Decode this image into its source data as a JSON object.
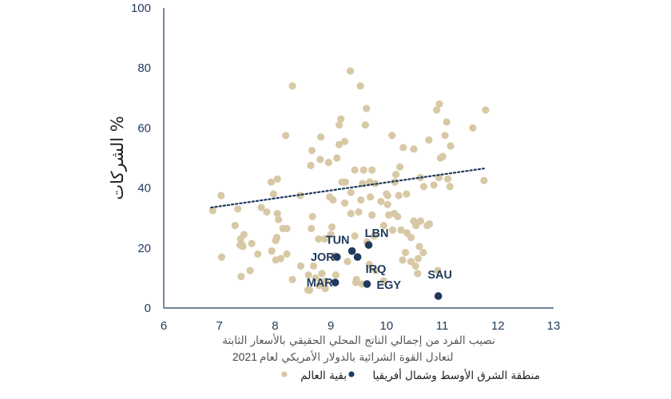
{
  "chart_data": {
    "type": "scatter",
    "xlabel_line1": "نصيب الفرد من إجمالي الناتج المحلي الحقيقي بالأسعار الثابتة",
    "xlabel_line2": "لتعادل القوة الشرائية بالدولار الأمريكي لعام",
    "xlabel_year": "2021",
    "ylabel": "% الشركات",
    "xlim": [
      6,
      13
    ],
    "ylim": [
      0,
      100
    ],
    "x_ticks": [
      "6",
      "7",
      "8",
      "9",
      "10",
      "11",
      "12",
      "13"
    ],
    "y_ticks": [
      "0",
      "20",
      "40",
      "60",
      "80",
      "100"
    ],
    "grid": false,
    "legend_position": "bottom",
    "colors": {
      "mena": "#1f3a5c",
      "rest": "#d8c9a6",
      "axis": "#1f3a5c",
      "trend": "#1f3a5c"
    },
    "series": [
      {
        "name": "بقية العالم",
        "points": [
          [
            6.88,
            32.5
          ],
          [
            7.03,
            37.5
          ],
          [
            7.04,
            17
          ],
          [
            7.28,
            27.5
          ],
          [
            7.33,
            33
          ],
          [
            7.37,
            21
          ],
          [
            7.38,
            23
          ],
          [
            7.39,
            10.5
          ],
          [
            7.41,
            21
          ],
          [
            7.42,
            20.5
          ],
          [
            7.44,
            24.5
          ],
          [
            7.55,
            12.5
          ],
          [
            7.58,
            21.5
          ],
          [
            7.69,
            18
          ],
          [
            7.75,
            33.5
          ],
          [
            7.85,
            32
          ],
          [
            7.93,
            42
          ],
          [
            7.94,
            19
          ],
          [
            7.97,
            38
          ],
          [
            8.01,
            22.5
          ],
          [
            8.01,
            16
          ],
          [
            8.03,
            23.5
          ],
          [
            8.04,
            31.5
          ],
          [
            8.04,
            43
          ],
          [
            8.06,
            29.5
          ],
          [
            8.1,
            16.5
          ],
          [
            8.14,
            26.5
          ],
          [
            8.19,
            57.5
          ],
          [
            8.21,
            26.5
          ],
          [
            8.21,
            18
          ],
          [
            8.31,
            74
          ],
          [
            8.31,
            9.5
          ],
          [
            8.45,
            37.5
          ],
          [
            8.46,
            14
          ],
          [
            8.59,
            6
          ],
          [
            8.6,
            11
          ],
          [
            8.62,
            6
          ],
          [
            8.64,
            47.5
          ],
          [
            8.65,
            26.5
          ],
          [
            8.66,
            52.5
          ],
          [
            8.67,
            30.5
          ],
          [
            8.69,
            14
          ],
          [
            8.73,
            10
          ],
          [
            8.78,
            23
          ],
          [
            8.79,
            7.5
          ],
          [
            8.81,
            49.5
          ],
          [
            8.82,
            57
          ],
          [
            8.84,
            11.5
          ],
          [
            8.89,
            23
          ],
          [
            8.9,
            9
          ],
          [
            8.9,
            6.5
          ],
          [
            8.96,
            48.5
          ],
          [
            8.98,
            37
          ],
          [
            9,
            24.5
          ],
          [
            9.02,
            27
          ],
          [
            9.04,
            36
          ],
          [
            9.05,
            17
          ],
          [
            9.07,
            17.5
          ],
          [
            9.09,
            11
          ],
          [
            9.11,
            50
          ],
          [
            9.15,
            54.5
          ],
          [
            9.15,
            61
          ],
          [
            9.18,
            63
          ],
          [
            9.2,
            42
          ],
          [
            9.25,
            55.5
          ],
          [
            9.25,
            35
          ],
          [
            9.26,
            42
          ],
          [
            9.3,
            15.5
          ],
          [
            9.35,
            79
          ],
          [
            9.36,
            31.5
          ],
          [
            9.36,
            38.5
          ],
          [
            9.43,
            46
          ],
          [
            9.43,
            24
          ],
          [
            9.45,
            8.5
          ],
          [
            9.46,
            9.5
          ],
          [
            9.5,
            32
          ],
          [
            9.53,
            74
          ],
          [
            9.54,
            36
          ],
          [
            9.56,
            8
          ],
          [
            9.57,
            41.5
          ],
          [
            9.59,
            46
          ],
          [
            9.62,
            61
          ],
          [
            9.64,
            66.5
          ],
          [
            9.65,
            22
          ],
          [
            9.69,
            14.5
          ],
          [
            9.7,
            42
          ],
          [
            9.71,
            37
          ],
          [
            9.74,
            46
          ],
          [
            9.74,
            31
          ],
          [
            9.78,
            24
          ],
          [
            9.8,
            12.5
          ],
          [
            9.8,
            41.5
          ],
          [
            9.9,
            35.5
          ],
          [
            9.95,
            27.5
          ],
          [
            9.95,
            9
          ],
          [
            10.0,
            38
          ],
          [
            10.02,
            37.5
          ],
          [
            10.02,
            34.5
          ],
          [
            10.04,
            31
          ],
          [
            10.1,
            57.5
          ],
          [
            10.11,
            26
          ],
          [
            10.14,
            31.5
          ],
          [
            10.15,
            42
          ],
          [
            10.17,
            44.5
          ],
          [
            10.2,
            30.5
          ],
          [
            10.22,
            37.5
          ],
          [
            10.24,
            47
          ],
          [
            10.26,
            26
          ],
          [
            10.29,
            16
          ],
          [
            10.3,
            53.5
          ],
          [
            10.34,
            18.5
          ],
          [
            10.36,
            38
          ],
          [
            10.37,
            25
          ],
          [
            10.44,
            23.5
          ],
          [
            10.44,
            15.5
          ],
          [
            10.49,
            29
          ],
          [
            10.49,
            53
          ],
          [
            10.52,
            14
          ],
          [
            10.53,
            27.5
          ],
          [
            10.56,
            11.5
          ],
          [
            10.57,
            16.5
          ],
          [
            10.59,
            20.5
          ],
          [
            10.61,
            43.5
          ],
          [
            10.61,
            29
          ],
          [
            10.66,
            18.5
          ],
          [
            10.67,
            40.5
          ],
          [
            10.73,
            27.5
          ],
          [
            10.76,
            56
          ],
          [
            10.77,
            28
          ],
          [
            10.85,
            41
          ],
          [
            10.9,
            66
          ],
          [
            10.92,
            12.5
          ],
          [
            10.94,
            43.5
          ],
          [
            10.95,
            68
          ],
          [
            10.97,
            50
          ],
          [
            11.01,
            50.5
          ],
          [
            11.05,
            57.5
          ],
          [
            11.08,
            62
          ],
          [
            11.1,
            43
          ],
          [
            11.14,
            40.5
          ],
          [
            11.15,
            54
          ],
          [
            11.55,
            60
          ],
          [
            11.75,
            42.5
          ],
          [
            11.78,
            66
          ]
        ]
      },
      {
        "name": "منطقة الشرق الأوسط وشمال أفريقيا",
        "points": [
          {
            "code": "TUN",
            "x": 9.38,
            "y": 19
          },
          {
            "code": "LBN",
            "x": 9.68,
            "y": 21
          },
          {
            "code": "JOR",
            "x": 9.11,
            "y": 17
          },
          {
            "code": "IRQ",
            "x": 9.48,
            "y": 17
          },
          {
            "code": "MAR",
            "x": 9.08,
            "y": 8.5
          },
          {
            "code": "EGY",
            "x": 9.65,
            "y": 8
          },
          {
            "code": "SAU",
            "x": 10.93,
            "y": 4
          }
        ]
      }
    ],
    "trendline": {
      "x": [
        6.85,
        11.75
      ],
      "y": [
        33.5,
        46.5
      ]
    }
  },
  "legend": {
    "mena_label": "منطقة الشرق الأوسط وشمال أفريقيا",
    "rest_label": "بقية العالم"
  }
}
